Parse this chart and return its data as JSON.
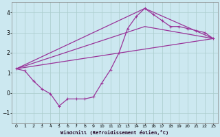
{
  "xlabel": "Windchill (Refroidissement éolien,°C)",
  "bg_color": "#cce8f0",
  "grid_color": "#aacccc",
  "line_color": "#993399",
  "xlim": [
    -0.5,
    23.5
  ],
  "ylim": [
    -1.5,
    4.5
  ],
  "yticks": [
    -1,
    0,
    1,
    2,
    3,
    4
  ],
  "xticks": [
    0,
    1,
    2,
    3,
    4,
    5,
    6,
    7,
    8,
    9,
    10,
    11,
    12,
    13,
    14,
    15,
    16,
    17,
    18,
    19,
    20,
    21,
    22,
    23
  ],
  "series1_x": [
    0,
    1,
    2,
    3,
    4,
    5,
    6,
    7,
    8,
    9,
    10,
    11,
    12,
    13,
    14,
    15,
    16,
    17,
    18,
    19,
    20,
    21,
    22,
    23
  ],
  "series1_y": [
    1.2,
    1.1,
    0.6,
    0.2,
    -0.05,
    -0.65,
    -0.3,
    -0.3,
    -0.3,
    -0.2,
    0.5,
    1.15,
    2.0,
    3.2,
    3.8,
    4.2,
    3.9,
    3.6,
    3.3,
    3.3,
    3.2,
    3.1,
    3.0,
    2.7
  ],
  "line1_x": [
    0,
    23
  ],
  "line1_y": [
    1.2,
    2.7
  ],
  "line2_x": [
    0,
    15,
    23
  ],
  "line2_y": [
    1.2,
    4.2,
    2.7
  ],
  "line3_x": [
    0,
    15,
    23
  ],
  "line3_y": [
    1.2,
    3.3,
    2.7
  ]
}
